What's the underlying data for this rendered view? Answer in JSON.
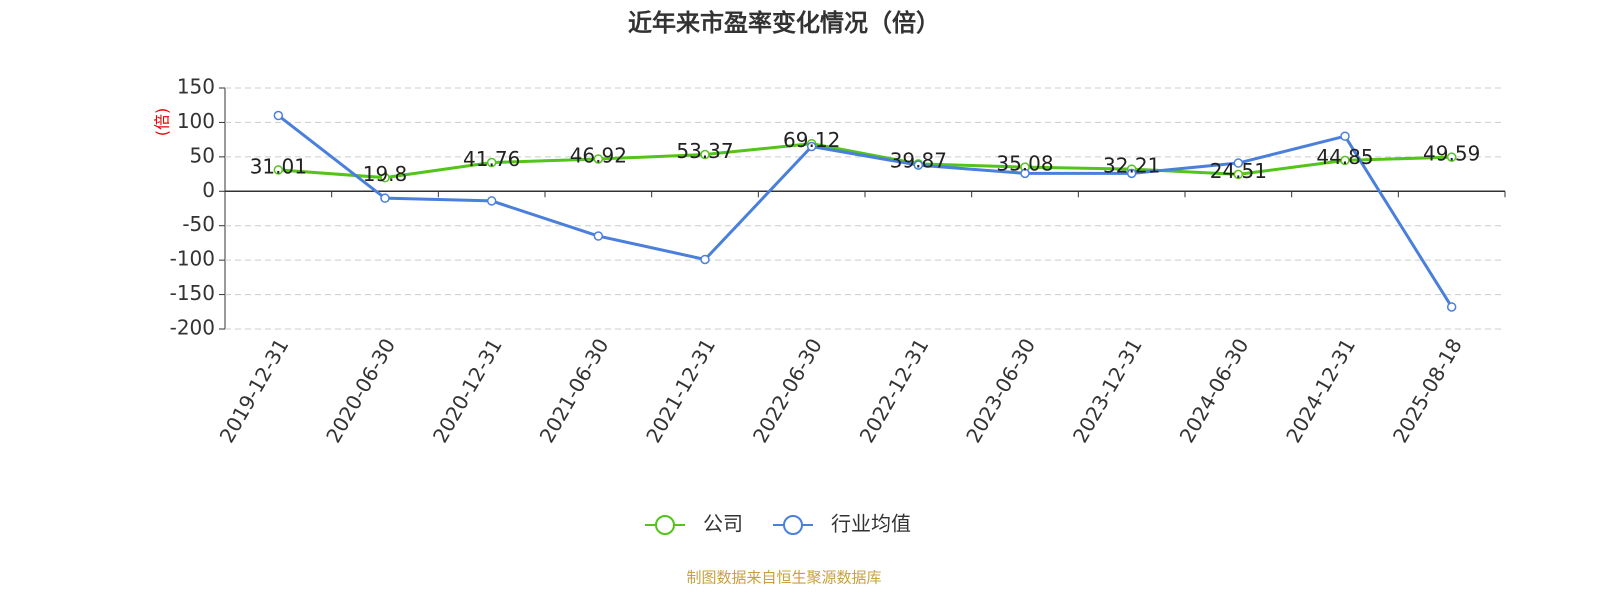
{
  "chart_data": {
    "type": "line",
    "title": "近年来市盈率变化情况（倍）",
    "y_axis_label": "(倍)",
    "categories": [
      "2019-12-31",
      "2020-06-30",
      "2020-12-31",
      "2021-06-30",
      "2021-12-31",
      "2022-06-30",
      "2022-12-31",
      "2023-06-30",
      "2023-12-31",
      "2024-06-30",
      "2024-12-31",
      "2025-08-18"
    ],
    "series": [
      {
        "name": "公司",
        "color": "#52c41a",
        "values": [
          31.01,
          19.8,
          41.76,
          46.92,
          53.37,
          69.12,
          39.87,
          35.08,
          32.21,
          24.51,
          44.85,
          49.59
        ]
      },
      {
        "name": "行业均值",
        "color": "#4a7fdc",
        "values": [
          110,
          -10,
          -14,
          -65,
          -99,
          65,
          38,
          26,
          26,
          41,
          80,
          -168
        ]
      }
    ],
    "ylim": [
      -200,
      150
    ],
    "yticks": [
      -200,
      -150,
      -100,
      -50,
      0,
      50,
      100,
      150
    ],
    "grid": true,
    "source": "制图数据来自恒生聚源数据库"
  }
}
